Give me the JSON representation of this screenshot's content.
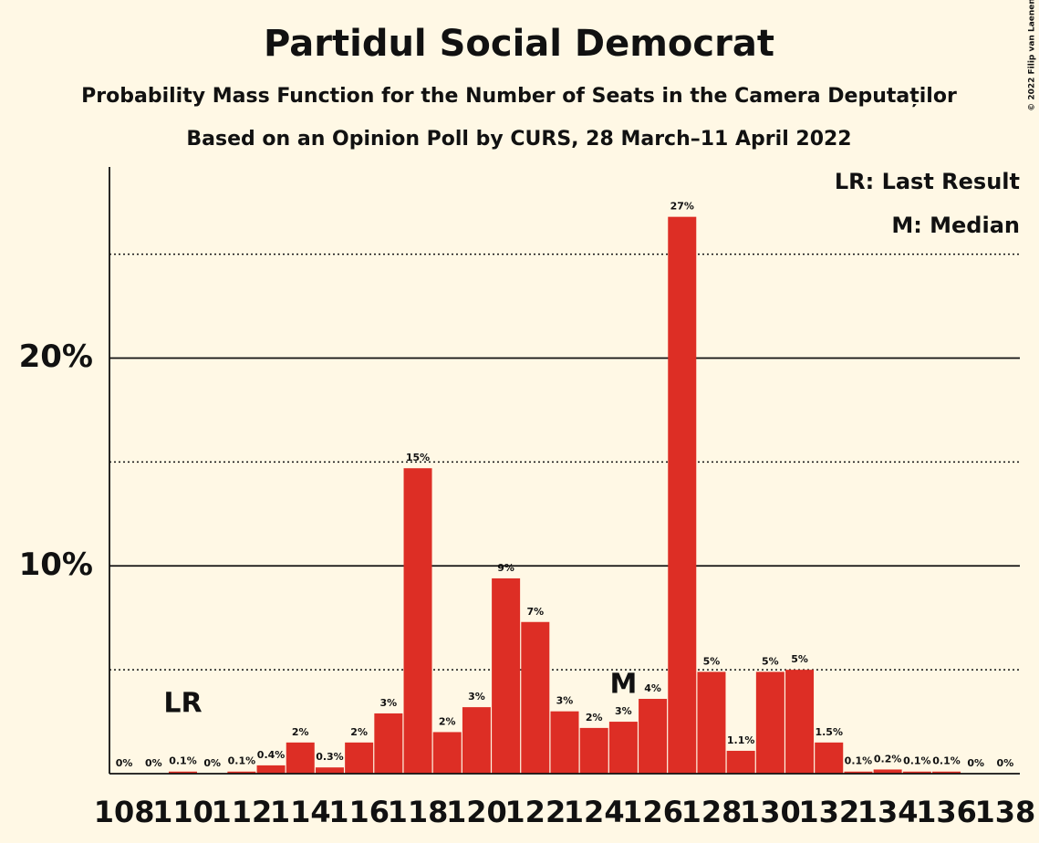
{
  "chart_data": {
    "type": "bar",
    "title": "Partidul Social Democrat",
    "subtitle": "Probability Mass Function for the Number of Seats in the Camera Deputaților",
    "subtitle2": "Based on an Opinion Poll by CURS, 28 March–11 April 2022",
    "copyright": "© 2022 Filip van Laenen",
    "categories": [
      "108",
      null,
      "110",
      null,
      "112",
      null,
      "114",
      null,
      "116",
      null,
      "118",
      null,
      "120",
      null,
      "122",
      null,
      "124",
      null,
      "126",
      null,
      "128",
      null,
      "130",
      null,
      "132",
      null,
      "134",
      null,
      "136",
      null,
      "138"
    ],
    "values": [
      0,
      0,
      0.1,
      0,
      0.1,
      0.4,
      1.5,
      0.3,
      1.5,
      2.9,
      14.7,
      2.0,
      3.2,
      9.4,
      7.3,
      3.0,
      2.2,
      2.5,
      3.6,
      26.8,
      4.9,
      1.1,
      4.9,
      5.0,
      1.5,
      0.1,
      0.2,
      0.1,
      0.1,
      0,
      0
    ],
    "value_labels": [
      "0%",
      "0%",
      "0.1%",
      "0%",
      "0.1%",
      "0.4%",
      "2%",
      "0.3%",
      "2%",
      "3%",
      "15%",
      "2%",
      "3%",
      "9%",
      "7%",
      "3%",
      "2%",
      "3%",
      "4%",
      "27%",
      "5%",
      "1.1%",
      "5%",
      "5%",
      "1.5%",
      "0.1%",
      "0.2%",
      "0.1%",
      "0.1%",
      "0%",
      "0%"
    ],
    "color": "#dd2e25",
    "ylim": [
      0,
      29.2
    ],
    "yticks": [
      {
        "value": 10,
        "label": "10%"
      },
      {
        "value": 20,
        "label": "20%"
      }
    ],
    "minor_gridlines": [
      5,
      15,
      25
    ],
    "grid": true,
    "annotations": [
      {
        "text": "LR",
        "at": "110"
      },
      {
        "text": "M",
        "at": "125"
      }
    ],
    "legend": [
      "LR: Last Result",
      "M: Median"
    ]
  }
}
